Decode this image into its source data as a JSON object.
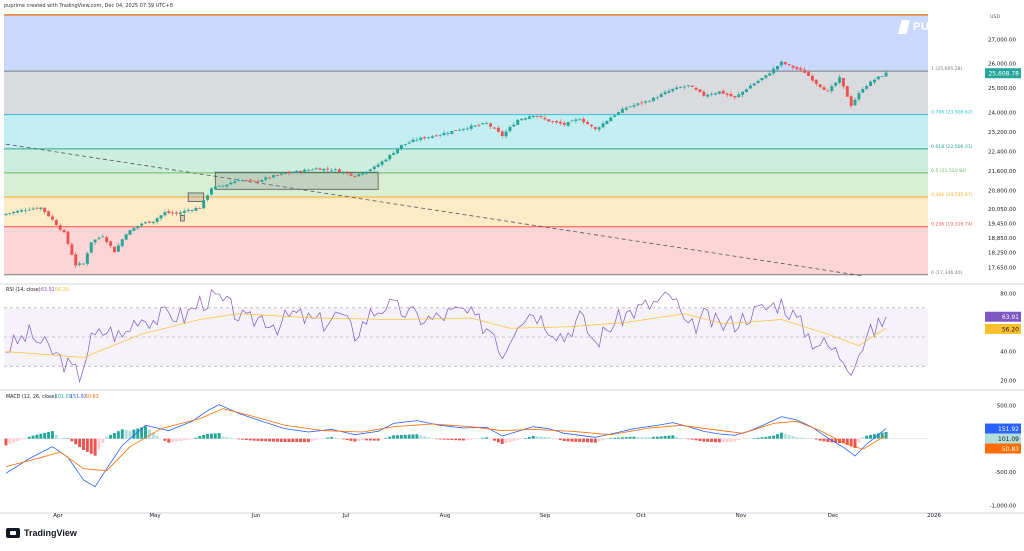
{
  "header": {
    "title": "puprime created with TradingView.com, Dec 04, 2025 07:39 UTC+8"
  },
  "footer": {
    "logo_text": "TradingView"
  },
  "brand": {
    "name": "PUPRIME"
  },
  "colors": {
    "up": "#26a69a",
    "down": "#ef5350",
    "rsi": "#7e57c2",
    "rsi_ma": "#fbc02d",
    "macd": "#2962ff",
    "signal": "#ff6d00",
    "price_tag": "#26a69a"
  },
  "chart_data": [
    {
      "type": "candlestick",
      "title": "",
      "currency": "USD",
      "x_labels": [
        "Apr",
        "May",
        "Jun",
        "Jul",
        "Aug",
        "Sep",
        "Oct",
        "Nov",
        "Dec",
        "2026"
      ],
      "y_ticks": [
        "27,000.00",
        "26,000.00",
        "25,000.00",
        "24,000.00",
        "23,200.00",
        "22,400.00",
        "21,600.00",
        "20,800.00",
        "20,050.00",
        "19,450.00",
        "18,850.00",
        "18,250.00",
        "17,650.00"
      ],
      "y_tick_values": [
        27000,
        26000,
        25000,
        24000,
        23200,
        22400,
        21600,
        20800,
        20050,
        19450,
        18850,
        18250,
        17650
      ],
      "last_price": "25,608.78",
      "last_price_value": 25608.78,
      "fib_levels": [
        {
          "label": "1 (25,695.28)",
          "value": 25695.28,
          "line": "#787b86",
          "fill": "#dadbde"
        },
        {
          "label": "0.786 (23,908.62)",
          "value": 23908.62,
          "line": "#26c6da",
          "fill": "#c5eef3"
        },
        {
          "label": "0.618 (22,506.01)",
          "value": 22506.01,
          "line": "#26a69a",
          "fill": "#cdeedf"
        },
        {
          "label": "0.5 (21,520.84)",
          "value": 21520.84,
          "line": "#66bb6a",
          "fill": "#d9efd3"
        },
        {
          "label": "0.382 (20,535.67)",
          "value": 20535.67,
          "line": "#ffa726",
          "fill": "#fdebc8"
        },
        {
          "label": "0.236 (19,316.74)",
          "value": 19316.74,
          "line": "#ef5350",
          "fill": "#fcd6d6"
        },
        {
          "label": "0 (17,346.40)",
          "value": 17346.4,
          "line": "#787b86",
          "fill": "#fcd6d6"
        }
      ],
      "extension_level": {
        "value": 28000,
        "line": "#ef6c00",
        "fill": "#c9d8fb"
      },
      "trendline": {
        "x": [
          0,
          221
        ],
        "y": [
          22700,
          17300
        ]
      },
      "boxes": [
        {
          "x": [
            45,
            46
          ],
          "y": [
            19550,
            19780
          ]
        },
        {
          "x": [
            47,
            51
          ],
          "y": [
            20350,
            20700
          ]
        },
        {
          "x": [
            54,
            96
          ],
          "y": [
            20850,
            21550
          ]
        }
      ],
      "close_anchors": [
        [
          0,
          19850
        ],
        [
          6,
          20050
        ],
        [
          9,
          20100
        ],
        [
          12,
          19600
        ],
        [
          15,
          19050
        ],
        [
          18,
          17750
        ],
        [
          20,
          17800
        ],
        [
          22,
          18700
        ],
        [
          25,
          18950
        ],
        [
          28,
          18300
        ],
        [
          31,
          19050
        ],
        [
          35,
          19450
        ],
        [
          38,
          19550
        ],
        [
          41,
          19900
        ],
        [
          44,
          19850
        ],
        [
          47,
          20000
        ],
        [
          50,
          20100
        ],
        [
          53,
          20900
        ],
        [
          56,
          21000
        ],
        [
          60,
          21250
        ],
        [
          64,
          21150
        ],
        [
          68,
          21350
        ],
        [
          72,
          21500
        ],
        [
          76,
          21600
        ],
        [
          80,
          21700
        ],
        [
          85,
          21650
        ],
        [
          90,
          21400
        ],
        [
          95,
          21750
        ],
        [
          98,
          22100
        ],
        [
          102,
          22650
        ],
        [
          106,
          22900
        ],
        [
          112,
          23100
        ],
        [
          118,
          23350
        ],
        [
          124,
          23550
        ],
        [
          128,
          23050
        ],
        [
          132,
          23700
        ],
        [
          136,
          23900
        ],
        [
          140,
          23650
        ],
        [
          144,
          23500
        ],
        [
          148,
          23750
        ],
        [
          152,
          23300
        ],
        [
          156,
          23800
        ],
        [
          160,
          24200
        ],
        [
          166,
          24500
        ],
        [
          172,
          24950
        ],
        [
          176,
          25100
        ],
        [
          180,
          24700
        ],
        [
          184,
          24850
        ],
        [
          188,
          24600
        ],
        [
          192,
          25100
        ],
        [
          196,
          25500
        ],
        [
          200,
          26050
        ],
        [
          203,
          25850
        ],
        [
          206,
          25650
        ],
        [
          209,
          25200
        ],
        [
          212,
          24850
        ],
        [
          215,
          25400
        ],
        [
          218,
          24300
        ],
        [
          221,
          25000
        ],
        [
          224,
          25350
        ],
        [
          227,
          25608.78
        ]
      ],
      "n_bars": 228
    },
    {
      "type": "line",
      "title": "RSI (14, close)",
      "legend": [
        "63.91",
        "56.20"
      ],
      "series": [
        {
          "name": "RSI",
          "last": 63.91
        },
        {
          "name": "RSI-based MA",
          "last": 56.2
        }
      ],
      "y_ticks": [
        "80.00",
        "40.00",
        "20.00"
      ],
      "y_tick_values": [
        80,
        40,
        20
      ],
      "y_range": [
        15,
        85
      ],
      "bands": [
        70,
        50,
        30
      ],
      "rsi_anchors": [
        [
          0,
          42
        ],
        [
          6,
          52
        ],
        [
          12,
          40
        ],
        [
          16,
          30
        ],
        [
          19,
          24
        ],
        [
          22,
          48
        ],
        [
          26,
          55
        ],
        [
          30,
          50
        ],
        [
          34,
          64
        ],
        [
          38,
          62
        ],
        [
          42,
          66
        ],
        [
          46,
          64
        ],
        [
          50,
          74
        ],
        [
          54,
          77
        ],
        [
          58,
          70
        ],
        [
          62,
          60
        ],
        [
          66,
          64
        ],
        [
          70,
          58
        ],
        [
          74,
          66
        ],
        [
          78,
          62
        ],
        [
          82,
          60
        ],
        [
          86,
          66
        ],
        [
          90,
          52
        ],
        [
          94,
          66
        ],
        [
          98,
          72
        ],
        [
          102,
          68
        ],
        [
          106,
          64
        ],
        [
          110,
          62
        ],
        [
          114,
          66
        ],
        [
          118,
          68
        ],
        [
          122,
          60
        ],
        [
          126,
          54
        ],
        [
          128,
          38
        ],
        [
          132,
          62
        ],
        [
          136,
          68
        ],
        [
          140,
          58
        ],
        [
          144,
          50
        ],
        [
          148,
          64
        ],
        [
          152,
          46
        ],
        [
          156,
          58
        ],
        [
          160,
          66
        ],
        [
          164,
          70
        ],
        [
          168,
          74
        ],
        [
          172,
          78
        ],
        [
          176,
          54
        ],
        [
          180,
          64
        ],
        [
          184,
          58
        ],
        [
          188,
          60
        ],
        [
          192,
          66
        ],
        [
          196,
          70
        ],
        [
          200,
          74
        ],
        [
          204,
          62
        ],
        [
          208,
          48
        ],
        [
          212,
          44
        ],
        [
          216,
          36
        ],
        [
          218,
          30
        ],
        [
          222,
          50
        ],
        [
          226,
          60
        ],
        [
          227,
          63.91
        ]
      ],
      "ma_anchors": [
        [
          0,
          40
        ],
        [
          20,
          36
        ],
        [
          35,
          52
        ],
        [
          50,
          62
        ],
        [
          60,
          66
        ],
        [
          80,
          63
        ],
        [
          100,
          62
        ],
        [
          120,
          63
        ],
        [
          130,
          56
        ],
        [
          145,
          57
        ],
        [
          160,
          60
        ],
        [
          175,
          66
        ],
        [
          185,
          59
        ],
        [
          200,
          62
        ],
        [
          212,
          52
        ],
        [
          220,
          44
        ],
        [
          227,
          56.2
        ]
      ]
    },
    {
      "type": "bar",
      "title": "MACD (12, 26, close)",
      "legend": [
        "101.09",
        "151.92",
        "50.83"
      ],
      "series": [
        {
          "name": "Histogram",
          "last": 101.09
        },
        {
          "name": "MACD",
          "last": 151.92
        },
        {
          "name": "Signal",
          "last": 50.83
        }
      ],
      "y_ticks": [
        "500.00",
        "-500.00",
        "-1,000.00"
      ],
      "y_tick_values": [
        500,
        -500,
        -1000
      ],
      "y_range": [
        -1100,
        700
      ],
      "macd_anchors": [
        [
          0,
          -520
        ],
        [
          6,
          -300
        ],
        [
          12,
          -120
        ],
        [
          16,
          -280
        ],
        [
          20,
          -620
        ],
        [
          23,
          -720
        ],
        [
          26,
          -450
        ],
        [
          30,
          -100
        ],
        [
          36,
          200
        ],
        [
          42,
          120
        ],
        [
          48,
          260
        ],
        [
          52,
          420
        ],
        [
          55,
          510
        ],
        [
          60,
          380
        ],
        [
          66,
          260
        ],
        [
          72,
          150
        ],
        [
          78,
          100
        ],
        [
          84,
          140
        ],
        [
          90,
          60
        ],
        [
          96,
          110
        ],
        [
          100,
          230
        ],
        [
          106,
          270
        ],
        [
          112,
          200
        ],
        [
          118,
          160
        ],
        [
          124,
          170
        ],
        [
          128,
          40
        ],
        [
          132,
          110
        ],
        [
          136,
          180
        ],
        [
          140,
          150
        ],
        [
          144,
          80
        ],
        [
          148,
          50
        ],
        [
          152,
          20
        ],
        [
          156,
          70
        ],
        [
          162,
          150
        ],
        [
          168,
          200
        ],
        [
          172,
          240
        ],
        [
          176,
          180
        ],
        [
          180,
          110
        ],
        [
          184,
          70
        ],
        [
          188,
          50
        ],
        [
          192,
          120
        ],
        [
          196,
          220
        ],
        [
          200,
          330
        ],
        [
          204,
          280
        ],
        [
          208,
          170
        ],
        [
          212,
          10
        ],
        [
          216,
          -130
        ],
        [
          219,
          -260
        ],
        [
          222,
          -80
        ],
        [
          225,
          60
        ],
        [
          227,
          151.92
        ]
      ],
      "signal_anchors": [
        [
          0,
          -420
        ],
        [
          8,
          -300
        ],
        [
          14,
          -200
        ],
        [
          20,
          -450
        ],
        [
          26,
          -480
        ],
        [
          32,
          -120
        ],
        [
          40,
          150
        ],
        [
          50,
          300
        ],
        [
          56,
          450
        ],
        [
          64,
          330
        ],
        [
          72,
          200
        ],
        [
          82,
          120
        ],
        [
          92,
          100
        ],
        [
          100,
          180
        ],
        [
          110,
          220
        ],
        [
          120,
          180
        ],
        [
          128,
          120
        ],
        [
          136,
          140
        ],
        [
          146,
          110
        ],
        [
          156,
          60
        ],
        [
          166,
          160
        ],
        [
          174,
          200
        ],
        [
          182,
          140
        ],
        [
          190,
          80
        ],
        [
          198,
          230
        ],
        [
          204,
          260
        ],
        [
          210,
          120
        ],
        [
          216,
          -60
        ],
        [
          221,
          -160
        ],
        [
          227,
          50.83
        ]
      ]
    }
  ]
}
